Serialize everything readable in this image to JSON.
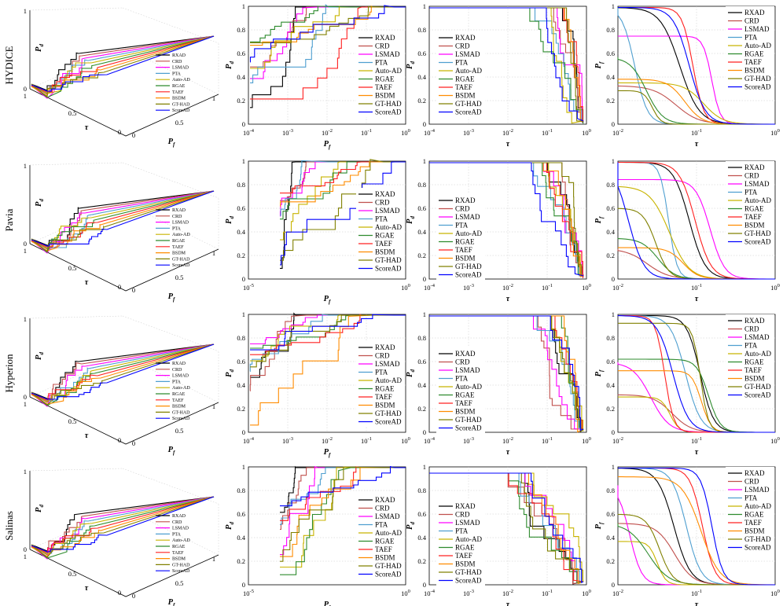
{
  "figure": {
    "datasets": [
      "HYDICE",
      "Pavia",
      "Hyperion",
      "Salinas"
    ],
    "methods": [
      "RXAD",
      "CRD",
      "LSMAD",
      "PTA",
      "Auto-AD",
      "RGAE",
      "TAEF",
      "BSDM",
      "GT-HAD",
      "ScoreAD"
    ],
    "colors": {
      "RXAD": "#000000",
      "CRD": "#c0504d",
      "LSMAD": "#ff00ff",
      "PTA": "#4f9fd0",
      "Auto-AD": "#c8b400",
      "RGAE": "#2e8b2e",
      "TAEF": "#ff2020",
      "BSDM": "#ff8c00",
      "GT-HAD": "#808000",
      "ScoreAD": "#0000ff"
    },
    "axis_labels": {
      "pd": "P",
      "pd_sub": "d",
      "pf": "P",
      "pf_sub": "f",
      "tau": "τ"
    }
  },
  "chart_data": [
    {
      "type": "line",
      "panel": "roc-3d",
      "columns": [
        "τ",
        "Pf",
        "Pd"
      ],
      "xlabel": "τ",
      "ylabel": "Pf",
      "zlabel": "Pd",
      "ticks": {
        "z": [
          "0",
          "1"
        ],
        "tau": [
          "1",
          "0.5",
          "0"
        ],
        "pf": [
          "0",
          "0.5",
          "1"
        ]
      }
    },
    {
      "type": "line",
      "panel": "roc-2d",
      "x": "Pf",
      "y": "Pd",
      "xscale": "log",
      "xlabel": "Pf",
      "ylabel": "Pd",
      "ylim": [
        0,
        1
      ],
      "xticks_per_row": [
        [
          "10-4",
          "10-3",
          "10-2",
          "10-1",
          "100"
        ],
        [
          "10-5",
          "100"
        ],
        [
          "10-4",
          "10-3",
          "10-2",
          "10-1",
          "100"
        ],
        [
          "10-5",
          "100"
        ]
      ],
      "yticks": [
        "0",
        "0.2",
        "0.4",
        "0.6",
        "0.8",
        "1"
      ]
    },
    {
      "type": "line",
      "panel": "pd-vs-tau",
      "x": "τ",
      "y": "Pd",
      "xscale": "log",
      "xlabel": "τ",
      "ylabel": "Pd",
      "xlim": [
        "10-4",
        "100"
      ],
      "ylim": [
        0,
        1
      ],
      "xticks": [
        "10-4",
        "10-3",
        "10-2",
        "10-1",
        "100"
      ],
      "yticks": [
        "0",
        "0.2",
        "0.4",
        "0.6",
        "0.8",
        "1"
      ]
    },
    {
      "type": "line",
      "panel": "pf-vs-tau",
      "x": "τ",
      "y": "Pf",
      "xscale": "log",
      "xlabel": "τ",
      "ylabel": "Pf",
      "ylim": [
        0,
        1
      ],
      "xticks": [
        "10-2",
        "10-1",
        "100"
      ],
      "yticks": [
        "0",
        "0.2",
        "0.4",
        "0.6",
        "0.8",
        "1"
      ]
    }
  ]
}
